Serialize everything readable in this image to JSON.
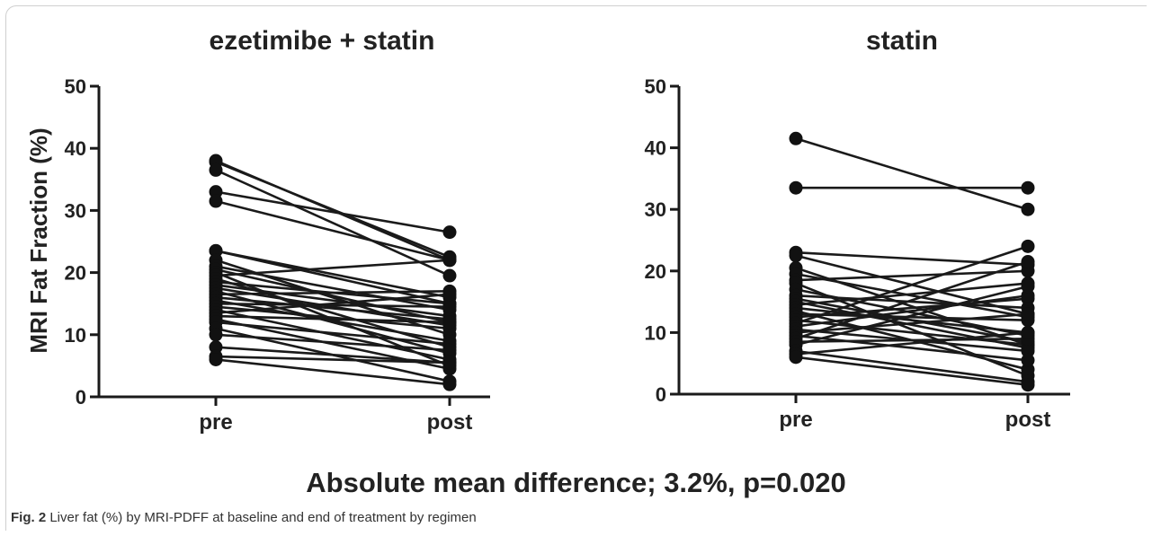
{
  "summary_text": "Absolute mean difference;  3.2%, p=0.020",
  "caption": {
    "label": "Fig. 2",
    "text": "Liver fat (%) by MRI-PDFF at baseline and end of treatment by regimen"
  },
  "colors": {
    "line": "#1a1a1a",
    "marker": "#111111",
    "text": "#222222"
  },
  "chart_data": [
    {
      "type": "line",
      "title": "ezetimibe + statin",
      "ylabel": "MRI Fat Fraction  (%)",
      "xlabel": "",
      "categories": [
        "pre",
        "post"
      ],
      "ylim": [
        0,
        50
      ],
      "yticks": [
        0,
        10,
        20,
        30,
        40,
        50
      ],
      "pairs": [
        [
          38.0,
          22.0
        ],
        [
          37.8,
          22.5
        ],
        [
          36.5,
          19.5
        ],
        [
          33.0,
          26.5
        ],
        [
          31.5,
          22.0
        ],
        [
          23.5,
          16.0
        ],
        [
          23.5,
          15.0
        ],
        [
          22.0,
          10.0
        ],
        [
          21.0,
          14.0
        ],
        [
          20.5,
          12.0
        ],
        [
          20.0,
          5.0
        ],
        [
          19.5,
          22.0
        ],
        [
          19.0,
          8.0
        ],
        [
          18.5,
          15.0
        ],
        [
          18.0,
          13.0
        ],
        [
          17.5,
          11.5
        ],
        [
          17.0,
          7.0
        ],
        [
          16.5,
          17.0
        ],
        [
          16.0,
          12.5
        ],
        [
          15.5,
          9.0
        ],
        [
          15.0,
          14.5
        ],
        [
          14.5,
          11.0
        ],
        [
          14.0,
          6.0
        ],
        [
          13.5,
          16.5
        ],
        [
          13.0,
          12.0
        ],
        [
          12.5,
          4.5
        ],
        [
          12.0,
          8.5
        ],
        [
          11.0,
          2.5
        ],
        [
          10.0,
          7.5
        ],
        [
          8.0,
          5.5
        ],
        [
          6.5,
          5.5
        ],
        [
          6.0,
          2.0
        ]
      ]
    },
    {
      "type": "line",
      "title": "statin",
      "ylabel": "",
      "xlabel": "",
      "categories": [
        "pre",
        "post"
      ],
      "ylim": [
        0,
        50
      ],
      "yticks": [
        0,
        10,
        20,
        30,
        40,
        50
      ],
      "pairs": [
        [
          41.5,
          30.0
        ],
        [
          33.5,
          33.5
        ],
        [
          23.0,
          21.0
        ],
        [
          22.5,
          13.0
        ],
        [
          20.5,
          8.0
        ],
        [
          19.5,
          12.5
        ],
        [
          18.5,
          20.0
        ],
        [
          18.0,
          3.0
        ],
        [
          17.0,
          9.5
        ],
        [
          16.0,
          14.0
        ],
        [
          15.5,
          8.5
        ],
        [
          15.0,
          7.5
        ],
        [
          14.5,
          18.0
        ],
        [
          14.0,
          10.0
        ],
        [
          13.5,
          4.0
        ],
        [
          13.0,
          12.0
        ],
        [
          12.5,
          15.5
        ],
        [
          12.0,
          8.0
        ],
        [
          11.5,
          24.0
        ],
        [
          11.0,
          16.0
        ],
        [
          10.5,
          7.0
        ],
        [
          10.0,
          13.0
        ],
        [
          9.5,
          5.5
        ],
        [
          9.0,
          21.5
        ],
        [
          8.5,
          9.0
        ],
        [
          8.0,
          17.5
        ],
        [
          7.0,
          2.0
        ],
        [
          6.5,
          10.0
        ],
        [
          6.0,
          1.5
        ]
      ]
    }
  ]
}
